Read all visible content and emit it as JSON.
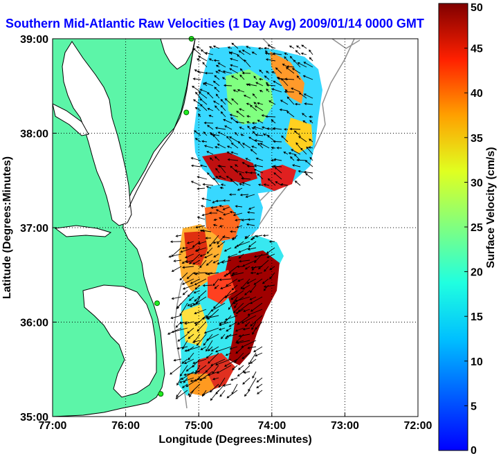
{
  "title": "Southern Mid-Atlantic Raw Velocities (1 Day Avg) 2009/01/14 0000 GMT",
  "map": {
    "xlabel": "Longitude (Degrees:Minutes)",
    "ylabel": "Latitude (Degrees:Minutes)",
    "x_ticks": [
      "77:00",
      "76:00",
      "75:00",
      "74:00",
      "73:00",
      "72:00"
    ],
    "y_ticks": [
      "39:00",
      "38:00",
      "37:00",
      "36:00",
      "35:00"
    ],
    "lon_range": [
      -77,
      -72
    ],
    "lat_range": [
      35,
      39
    ],
    "land_color": "#5cf5a8",
    "water_color": "#ffffff",
    "stations": [
      {
        "lon": -75.1,
        "lat": 39.0
      },
      {
        "lon": -75.17,
        "lat": 38.22
      },
      {
        "lon": -75.57,
        "lat": 36.2
      },
      {
        "lon": -75.52,
        "lat": 35.24
      }
    ]
  },
  "colorbar": {
    "label": "Surface Velocity (cm/s)",
    "ticks": [
      "0",
      "5",
      "10",
      "15",
      "20",
      "25",
      "30",
      "35",
      "40",
      "45",
      "50"
    ],
    "min": 0,
    "max": 50,
    "colormap": "jet"
  }
}
